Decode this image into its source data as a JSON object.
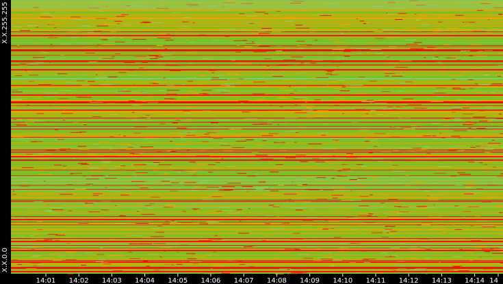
{
  "y_axis": {
    "top_label": "X.X.255.255",
    "bottom_label": "X.X.0.0"
  },
  "x_axis": {
    "ticks": [
      "14:01",
      "14:02",
      "14:03",
      "14:04",
      "14:05",
      "14:06",
      "14:07",
      "14:08",
      "14:09",
      "14:10",
      "14:11",
      "14:12",
      "14:13",
      "14:14",
      "14"
    ]
  },
  "colors": {
    "background": "#000000",
    "low": "#8fd07a",
    "mid": "#7cbf24",
    "mid_high": "#f2a400",
    "high": "#ff0000",
    "text": "#ffffff"
  }
}
